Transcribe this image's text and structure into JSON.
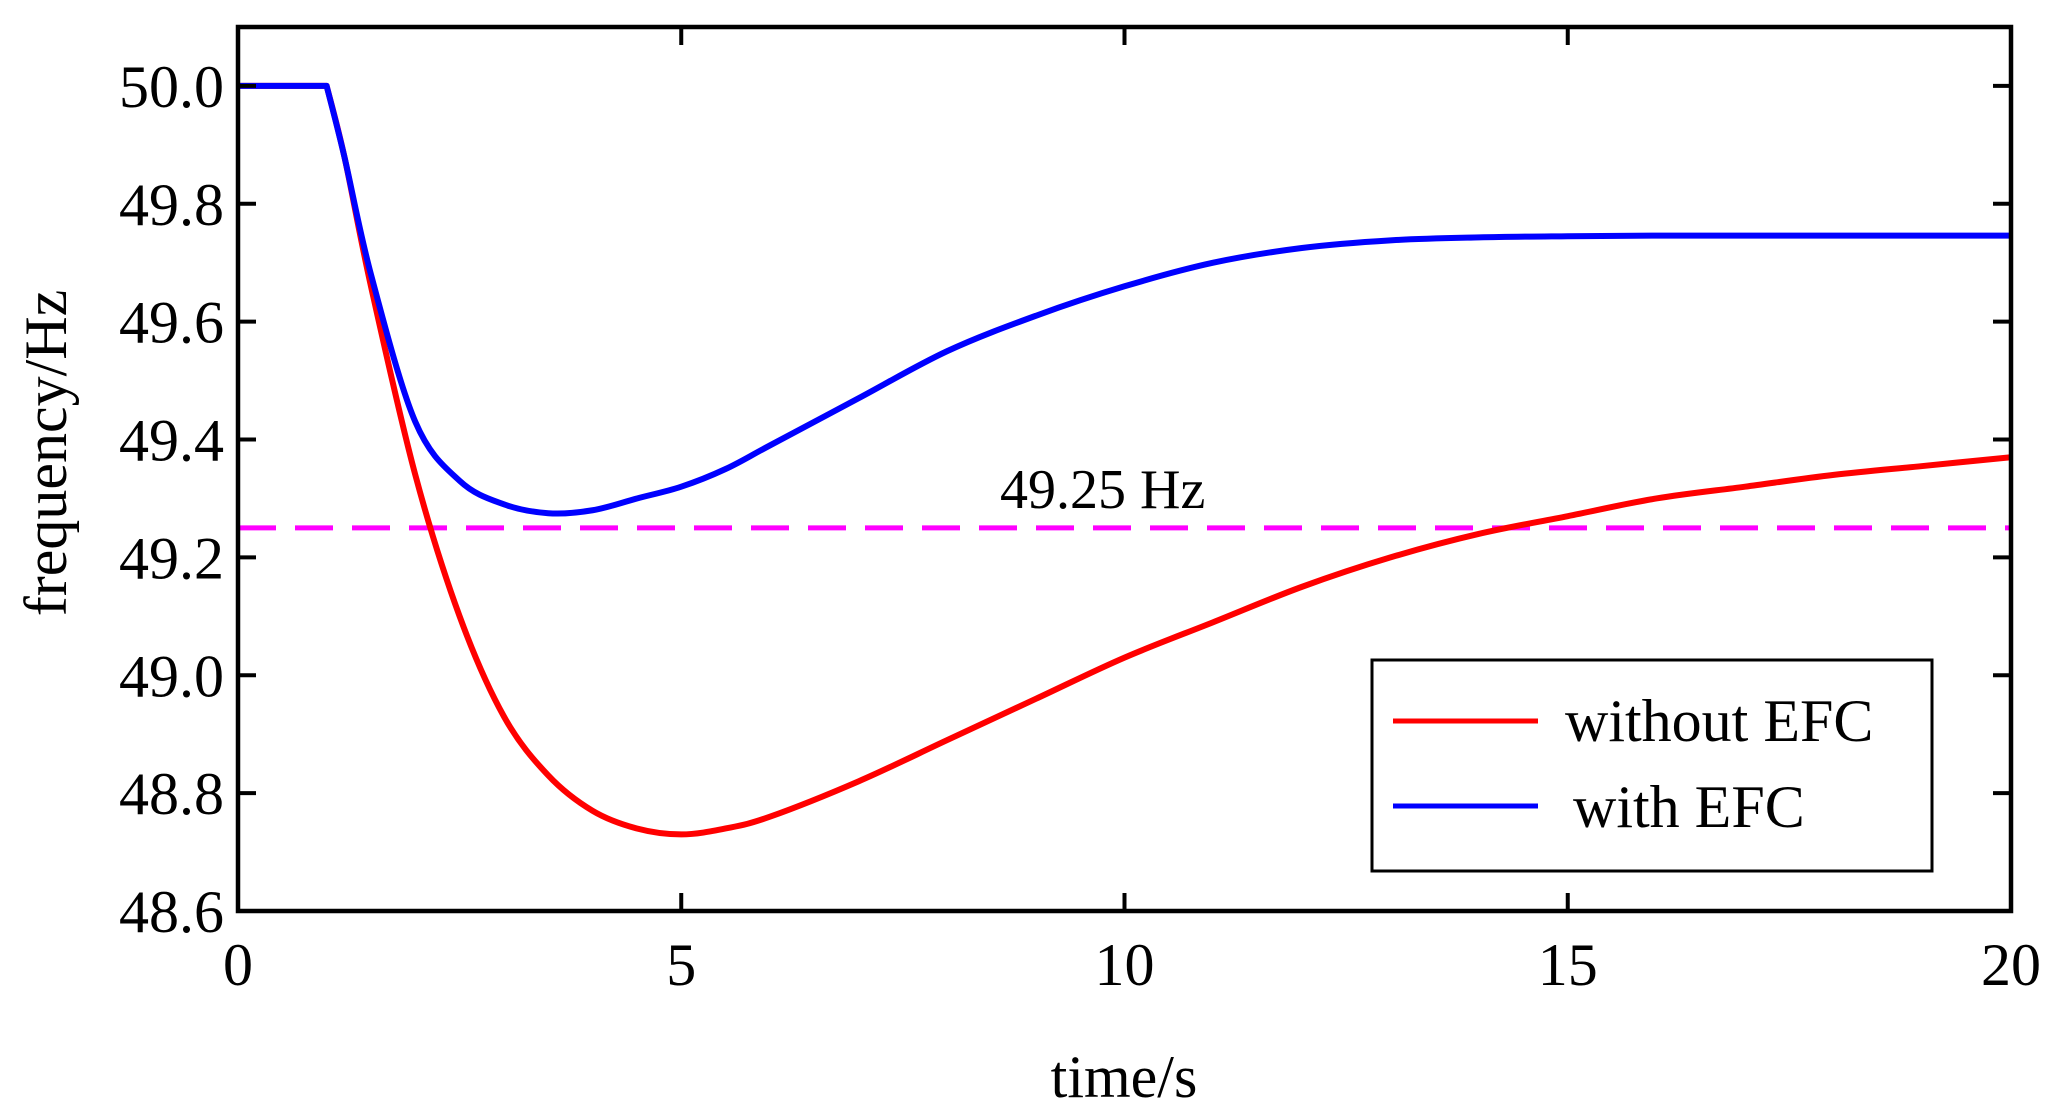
{
  "chart_data": {
    "type": "line",
    "title": "",
    "xlabel": "time/s",
    "ylabel": "frequency/Hz",
    "xlim": [
      0,
      20
    ],
    "ylim": [
      48.6,
      50.1
    ],
    "xticks": [
      0,
      5,
      10,
      15,
      20
    ],
    "xtick_labels": [
      "0",
      "5",
      "10",
      "15",
      "20"
    ],
    "yticks": [
      48.6,
      48.8,
      49.0,
      49.2,
      49.4,
      49.6,
      49.8,
      50.0
    ],
    "ytick_labels": [
      "48.6",
      "48.8",
      "49.0",
      "49.2",
      "49.4",
      "49.6",
      "49.8",
      "50.0"
    ],
    "grid": false,
    "legend_position": "bottom-right",
    "series": [
      {
        "name": "without EFC",
        "color": "#ff0000",
        "x": [
          0,
          1,
          1.2,
          1.5,
          2,
          2.5,
          3,
          3.5,
          4,
          4.5,
          5,
          5.5,
          6,
          7,
          8,
          9,
          10,
          11,
          12,
          13,
          14,
          15,
          16,
          17,
          18,
          19,
          20
        ],
        "y": [
          50.0,
          50.0,
          49.88,
          49.66,
          49.34,
          49.1,
          48.93,
          48.83,
          48.77,
          48.74,
          48.73,
          48.74,
          48.76,
          48.82,
          48.89,
          48.96,
          49.03,
          49.09,
          49.15,
          49.2,
          49.24,
          49.27,
          49.3,
          49.32,
          49.34,
          49.355,
          49.37
        ]
      },
      {
        "name": "with EFC",
        "color": "#0000ff",
        "x": [
          0,
          1,
          1.2,
          1.5,
          2,
          2.5,
          3,
          3.5,
          4,
          4.5,
          5,
          5.5,
          6,
          7,
          8,
          9,
          10,
          11,
          12,
          13,
          14,
          15,
          16,
          17,
          18,
          19,
          20
        ],
        "y": [
          50.0,
          50.0,
          49.88,
          49.68,
          49.43,
          49.33,
          49.29,
          49.275,
          49.28,
          49.3,
          49.32,
          49.35,
          49.39,
          49.47,
          49.55,
          49.61,
          49.66,
          49.7,
          49.725,
          49.738,
          49.743,
          49.745,
          49.746,
          49.746,
          49.746,
          49.746,
          49.746
        ]
      }
    ],
    "reference_line": {
      "y": 49.25,
      "label": "49.25 Hz",
      "color": "#ff00ff",
      "style": "dashed"
    }
  }
}
